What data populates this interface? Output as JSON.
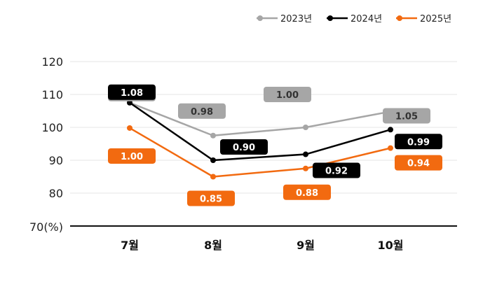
{
  "chart_data": {
    "type": "line",
    "categories": [
      "7월",
      "8월",
      "9월",
      "10월"
    ],
    "ylim": [
      70,
      120
    ],
    "yticks": [
      80,
      90,
      100,
      110,
      120
    ],
    "ytick_labels": [
      "80",
      "90",
      "100",
      "110",
      "120"
    ],
    "ybase_label": "70(%)",
    "legend_position": "top-right",
    "grid": true,
    "series": [
      {
        "name": "2023년",
        "color": "#a6a6a6",
        "label_text_color": "#333333",
        "values": [
          107.5,
          97.5,
          100,
          104.8
        ],
        "labels": [
          "1.08",
          "0.98",
          "1.00",
          "1.05"
        ]
      },
      {
        "name": "2024년",
        "color": "#000000",
        "label_text_color": "#ffffff",
        "values": [
          107.5,
          90,
          91.8,
          99.3
        ],
        "labels": [
          "1.08",
          "0.90",
          "0.92",
          "0.99"
        ]
      },
      {
        "name": "2025년",
        "color": "#f26a10",
        "label_text_color": "#ffffff",
        "values": [
          99.8,
          85,
          87.5,
          93.7
        ],
        "labels": [
          "1.00",
          "0.85",
          "0.88",
          "0.94"
        ]
      }
    ]
  }
}
